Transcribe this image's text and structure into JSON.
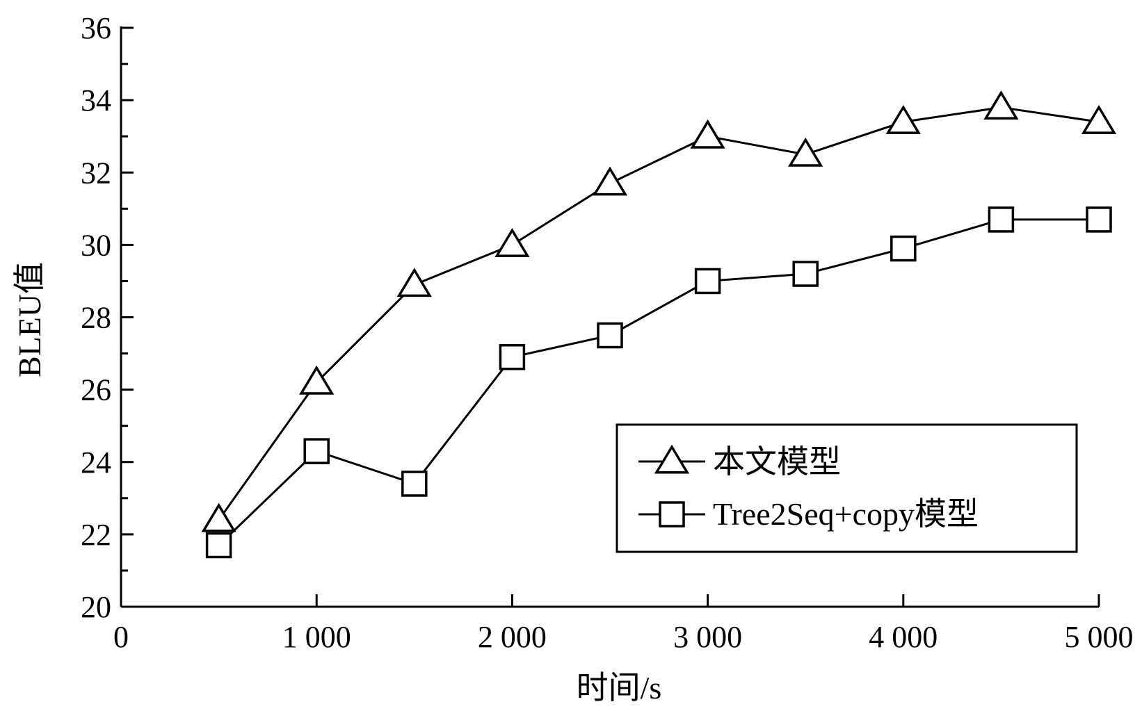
{
  "chart_data": {
    "type": "line",
    "title": "",
    "xlabel": "时间/s",
    "ylabel": "BLEU值",
    "xlim": [
      0,
      5000
    ],
    "ylim": [
      20,
      36
    ],
    "xticks": [
      0,
      1000,
      2000,
      3000,
      4000,
      5000
    ],
    "xtick_labels": [
      "0",
      "1 000",
      "2 000",
      "3 000",
      "4 000",
      "5 000"
    ],
    "yticks": [
      20,
      22,
      24,
      26,
      28,
      30,
      32,
      34,
      36
    ],
    "ytick_labels": [
      "20",
      "22",
      "24",
      "26",
      "28",
      "30",
      "32",
      "34",
      "36"
    ],
    "x": [
      500,
      1000,
      1500,
      2000,
      2500,
      3000,
      3500,
      4000,
      4500,
      5000
    ],
    "series": [
      {
        "name": "本文模型",
        "marker": "triangle",
        "values": [
          22.4,
          26.2,
          28.9,
          30.0,
          31.7,
          33.0,
          32.5,
          33.4,
          33.8,
          33.4
        ]
      },
      {
        "name": "Tree2Seq+copy模型",
        "marker": "square",
        "values": [
          21.7,
          24.3,
          23.4,
          26.9,
          27.5,
          29.0,
          29.2,
          29.9,
          30.7,
          30.7
        ]
      }
    ],
    "grid": false,
    "legend_position": "bottom-right",
    "colors": {
      "line": "#000000",
      "background": "#ffffff"
    }
  }
}
